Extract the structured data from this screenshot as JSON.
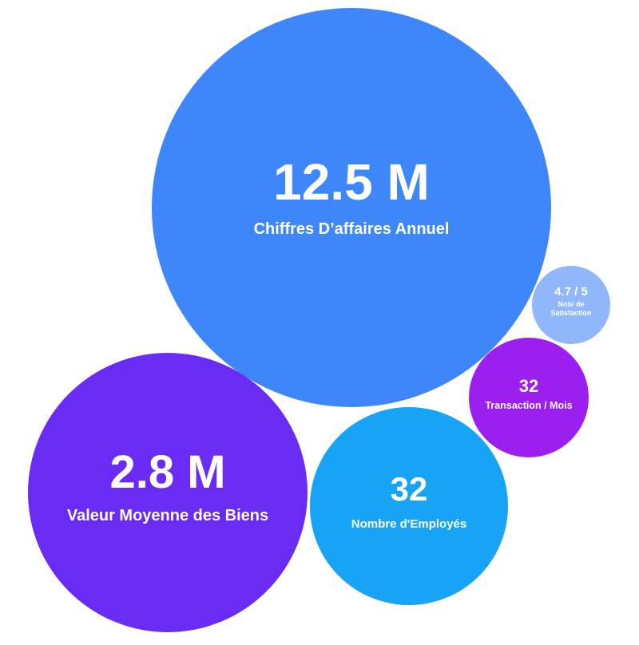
{
  "bubbles": [
    {
      "value": "12.5 M",
      "label": "Chiffres D’affaires Annuel",
      "color": "#3d87fb"
    },
    {
      "value": "2.8 M",
      "label": "Valeur Moyenne des Biens",
      "color": "#6a2cf5"
    },
    {
      "value": "32",
      "label": "Nombre d'Employés",
      "color": "#18a4f6"
    },
    {
      "value": "32",
      "label": "Transaction / Mois",
      "color": "#9c1ff0"
    },
    {
      "value": "4.7 / 5",
      "label": "Note de Satisfaction",
      "color": "#90b6fb"
    }
  ]
}
